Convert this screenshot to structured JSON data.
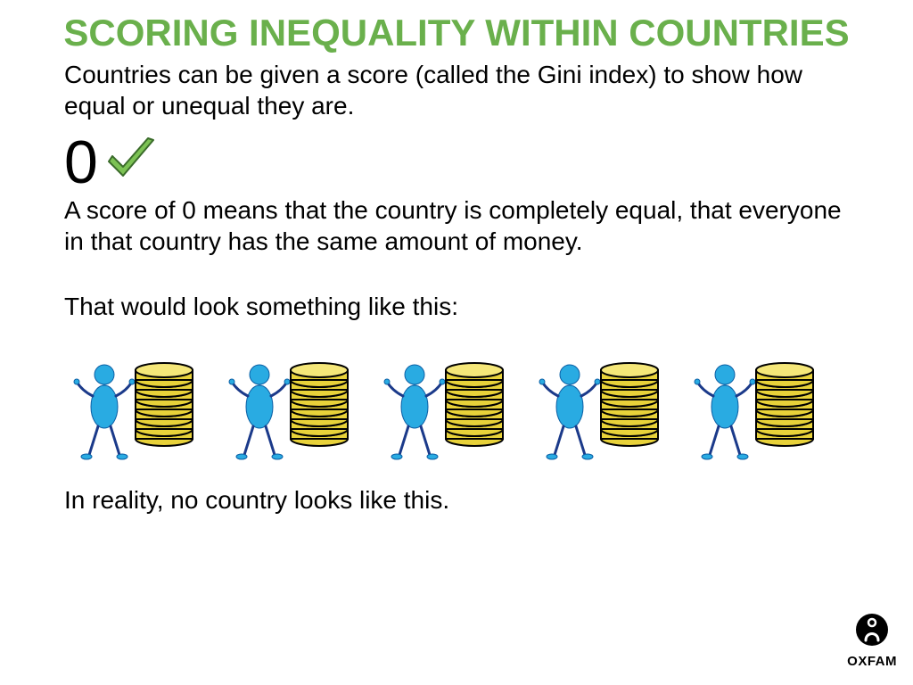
{
  "title": "SCORING INEQUALITY WITHIN COUNTRIES",
  "title_color": "#6ab04c",
  "title_fontsize": 42,
  "intro": "Countries can be given a score (called the Gini index) to show how equal or unequal they are.",
  "body_color": "#000000",
  "body_fontsize": 28,
  "score_value": "0",
  "score_fontsize": 68,
  "check_color": "#7cc254",
  "check_stroke": "#3a6b2a",
  "desc": "A score of 0 means that the country is completely equal, that everyone in that country has the same amount of money.",
  "look_text": "That would look something like this:",
  "reality": "In reality, no country looks like this.",
  "figure": {
    "count": 5,
    "coins_per_stack": 7,
    "person_body_color": "#29abe2",
    "person_body_stroke": "#0b5fa5",
    "person_limb_color": "#1b3a8a",
    "coin_fill": "#e8d23a",
    "coin_stroke": "#000000",
    "coin_highlight": "#f5e779"
  },
  "logo_text": "OXFAM",
  "background": "#ffffff"
}
